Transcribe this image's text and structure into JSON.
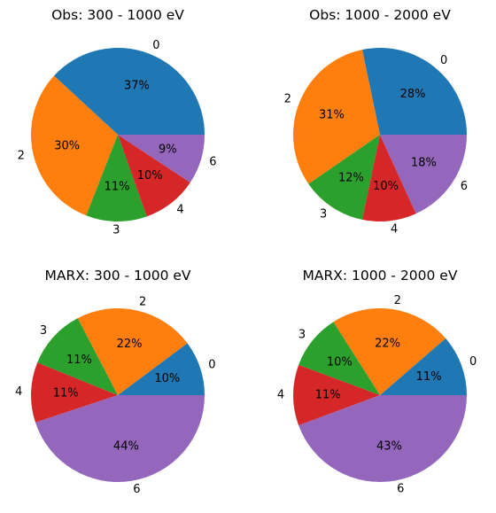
{
  "chart_data": [
    {
      "type": "pie",
      "title": "Obs: 300 - 1000 eV",
      "categories": [
        "0",
        "2",
        "3",
        "4",
        "6"
      ],
      "values": [
        37,
        30,
        11,
        10,
        9
      ],
      "percent_labels": [
        "37%",
        "30%",
        "11%",
        "10%",
        "9%"
      ]
    },
    {
      "type": "pie",
      "title": "Obs: 1000 - 2000 eV",
      "categories": [
        "0",
        "2",
        "3",
        "4",
        "6"
      ],
      "values": [
        28,
        31,
        12,
        10,
        18
      ],
      "percent_labels": [
        "28%",
        "31%",
        "12%",
        "10%",
        "18%"
      ]
    },
    {
      "type": "pie",
      "title": "MARX: 300 - 1000 eV",
      "categories": [
        "0",
        "2",
        "3",
        "4",
        "6"
      ],
      "values": [
        10,
        22,
        11,
        11,
        44
      ],
      "percent_labels": [
        "10%",
        "22%",
        "11%",
        "11%",
        "44%"
      ]
    },
    {
      "type": "pie",
      "title": "MARX: 1000 - 2000 eV",
      "categories": [
        "0",
        "2",
        "3",
        "4",
        "6"
      ],
      "values": [
        11,
        22,
        10,
        11,
        43
      ],
      "percent_labels": [
        "11%",
        "22%",
        "10%",
        "11%",
        "43%"
      ]
    }
  ],
  "colors": [
    "#1f77b4",
    "#ff7f0e",
    "#2ca02c",
    "#d62728",
    "#9467bd"
  ]
}
